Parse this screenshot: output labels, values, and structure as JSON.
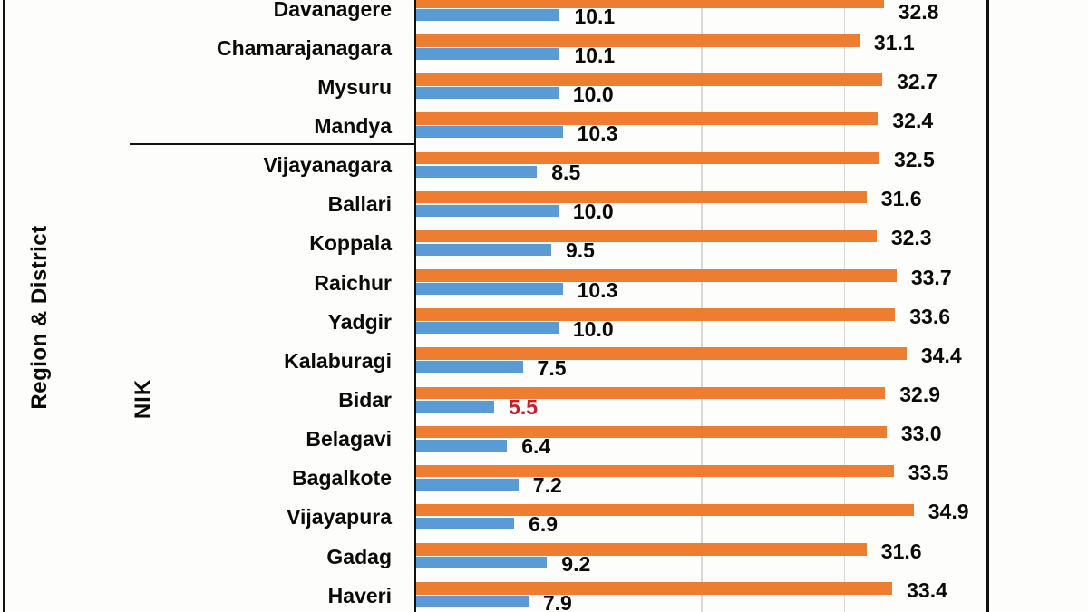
{
  "chart_data": {
    "type": "bar",
    "orientation": "horizontal",
    "title": "",
    "ylabel": "Region & District",
    "categories": [
      "Davanagere",
      "Chamarajanagara",
      "Mysuru",
      "Mandya",
      "Vijayanagara",
      "Ballari",
      "Koppala",
      "Raichur",
      "Yadgir",
      "Kalaburagi",
      "Bidar",
      "Belagavi",
      "Bagalkote",
      "Vijayapura",
      "Gadag",
      "Haveri"
    ],
    "series": [
      {
        "name": "series-orange",
        "color": "#ED7D31",
        "values": [
          32.8,
          31.1,
          32.7,
          32.4,
          32.5,
          31.6,
          32.3,
          33.7,
          33.6,
          34.4,
          32.9,
          33.0,
          33.5,
          34.9,
          31.6,
          33.4
        ]
      },
      {
        "name": "series-blue",
        "color": "#5B9BD5",
        "values": [
          10.1,
          10.1,
          10.0,
          10.3,
          8.5,
          10.0,
          9.5,
          10.3,
          10.0,
          7.5,
          5.5,
          6.4,
          7.2,
          6.9,
          9.2,
          7.9
        ]
      }
    ],
    "value_labels_visible": true,
    "highlight": {
      "category": "Bidar",
      "series": "series-blue",
      "label_color": "#C21E2C"
    },
    "axis": {
      "min": 0,
      "max": 40,
      "gridlines": [
        10,
        20,
        30
      ],
      "tick_labels_visible": false
    },
    "region_groups": [
      {
        "label": "",
        "categories_count": 4
      },
      {
        "label": "NIK",
        "categories_count": 12
      }
    ],
    "legend_position": "none-visible",
    "grid": "vertical-major"
  },
  "colors": {
    "orange_series": "#ED7D31",
    "blue_series": "#5B9BD5",
    "highlight_red": "#C21E2C",
    "gridline": "#D8D8D8",
    "axis_border": "#111111",
    "text": "#0a0a0a",
    "background": "#FDFDFB"
  }
}
